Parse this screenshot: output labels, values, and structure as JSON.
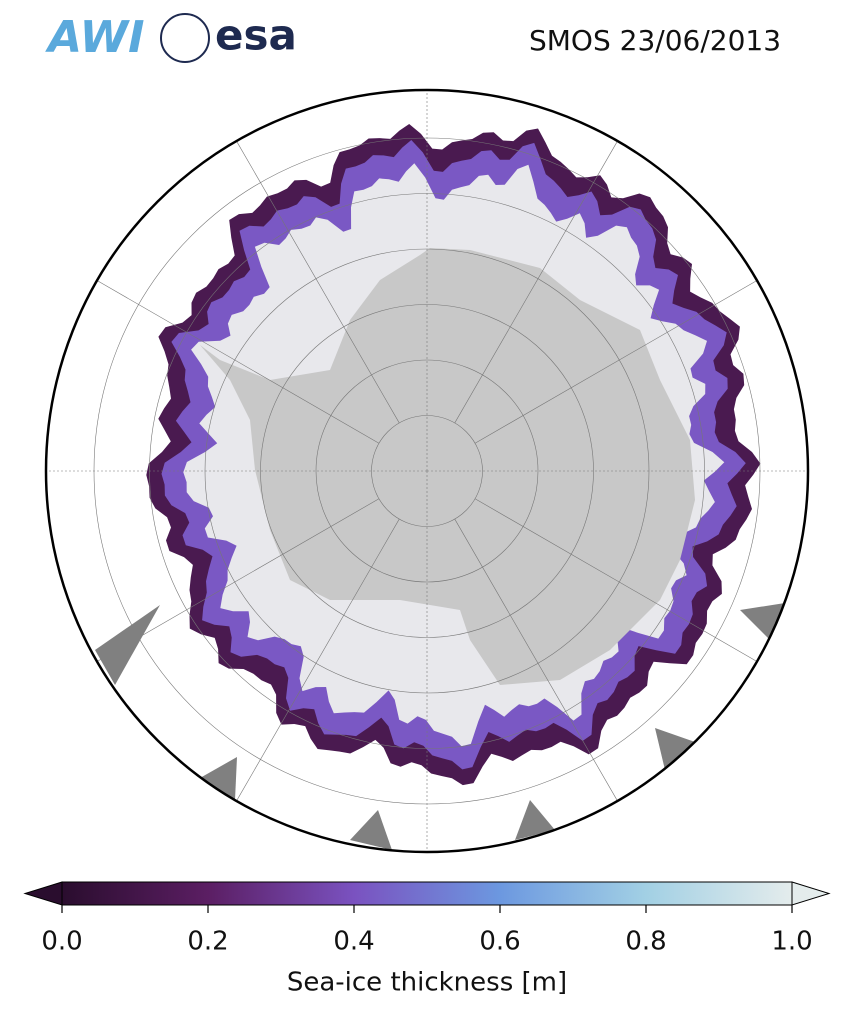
{
  "header": {
    "logos": [
      "AWI",
      "esa"
    ],
    "title": "SMOS 23/06/2013"
  },
  "colorbar": {
    "lim": [
      0,
      1
    ],
    "ticks": [
      {
        "value": 0,
        "label": "0.0"
      },
      0.2,
      0.4,
      0.6,
      0.8,
      {
        "value": 1,
        "label": "1.0"
      }
    ],
    "label": "Sea-ice thickness [m]",
    "colors": [
      "#2a0d2e",
      "#5b1e63",
      "#7a52c0",
      "#6c98e0",
      "#a2d0e4",
      "#e4ecec"
    ]
  }
}
